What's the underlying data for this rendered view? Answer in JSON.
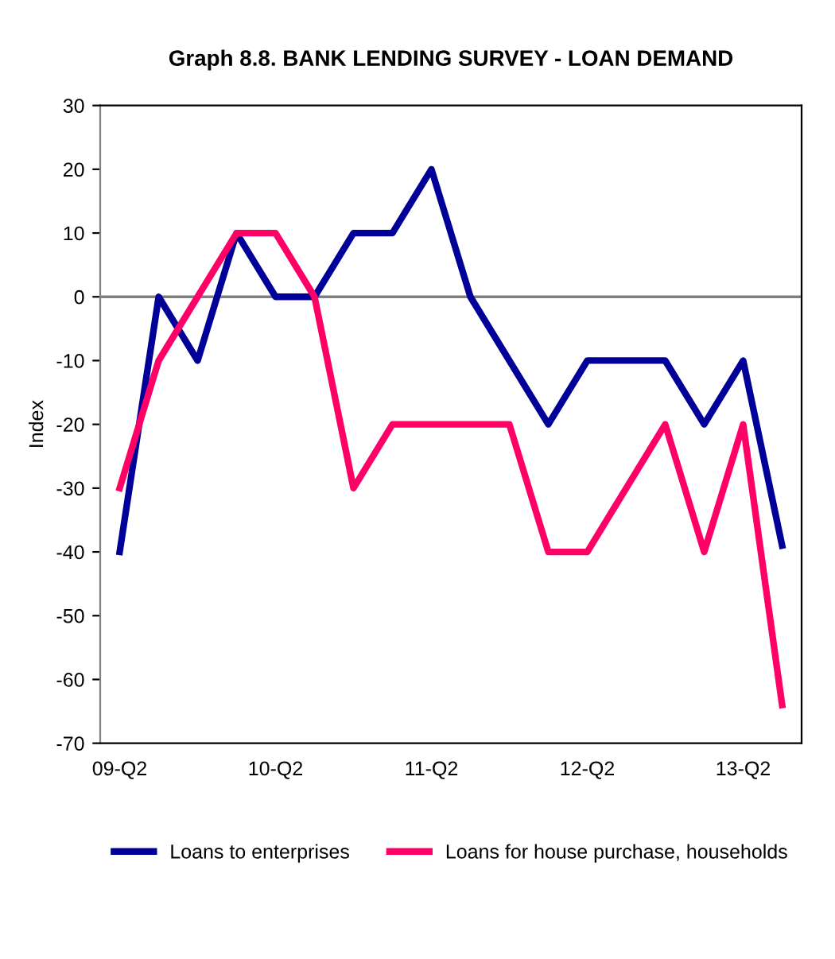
{
  "chart_data": {
    "type": "line",
    "title": "Graph 8.8. BANK LENDING SURVEY - LOAN DEMAND",
    "ylabel": "Index",
    "categories": [
      "09-Q2",
      null,
      null,
      null,
      "10-Q2",
      null,
      null,
      null,
      "11-Q2",
      null,
      null,
      null,
      "12-Q2",
      null,
      null,
      null,
      "13-Q2",
      null
    ],
    "series": [
      {
        "name": "Loans to enterprises",
        "color": "#000099",
        "values": [
          -40,
          0,
          -10,
          10,
          0,
          0,
          10,
          10,
          20,
          0,
          -10,
          -20,
          -10,
          -10,
          -10,
          -20,
          -10,
          -39
        ]
      },
      {
        "name": "Loans for house purchase, households",
        "color": "#ff0066",
        "values": [
          -30,
          -10,
          0,
          10,
          10,
          0,
          -30,
          -20,
          -20,
          -20,
          -20,
          -40,
          -40,
          -30,
          -20,
          -40,
          -20,
          -64
        ]
      }
    ],
    "ylim": [
      -70,
      30
    ],
    "yticks": [
      -70,
      -60,
      -50,
      -40,
      -30,
      -20,
      -10,
      0,
      10,
      20,
      30
    ],
    "ref_lines": [
      {
        "axis": "y",
        "value": 0,
        "color": "#808080"
      }
    ],
    "grid": false,
    "legend": "bottom",
    "marker": "none",
    "line_style": "solid"
  }
}
